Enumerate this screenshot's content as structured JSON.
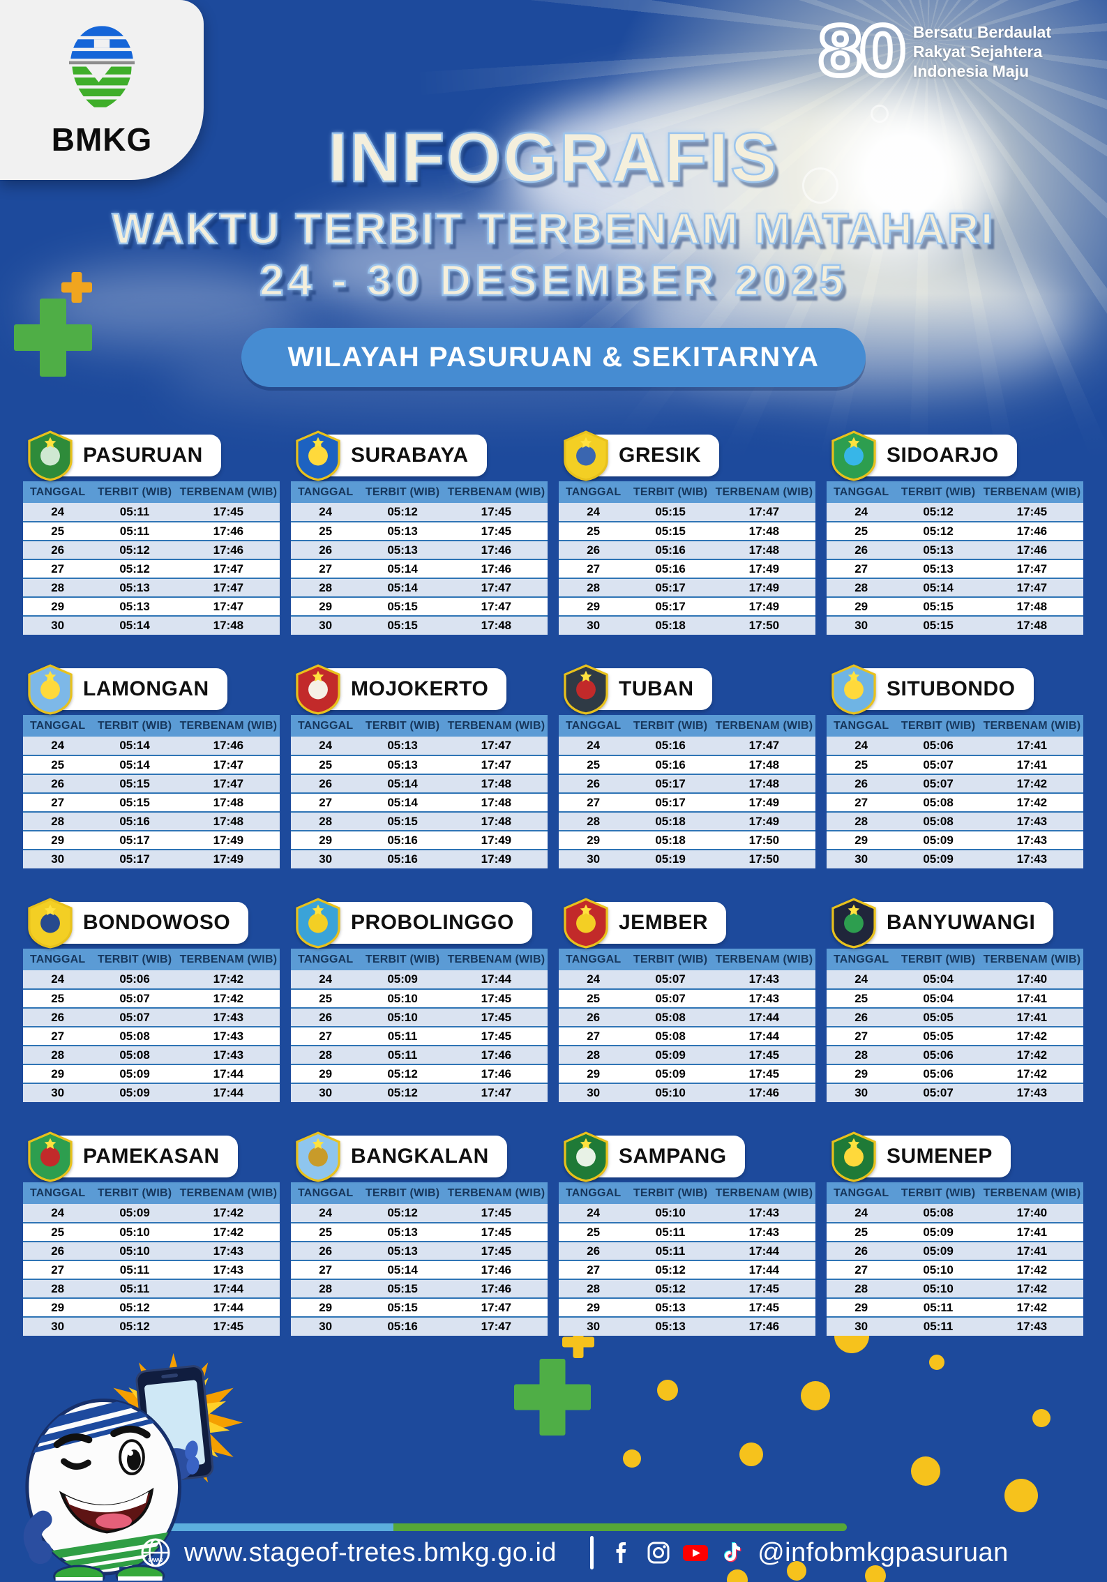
{
  "header": {
    "agency": "BMKG",
    "badge_80": {
      "number": "80",
      "lines": [
        "Bersatu Berdaulat",
        "Rakyat Sejahtera",
        "Indonesia Maju"
      ]
    },
    "title_line1": "INFOGRAFIS",
    "title_line2": "WAKTU TERBIT TERBENAM MATAHARI",
    "title_line3": "24 - 30 DESEMBER 2025",
    "region_pill": "WILAYAH PASURUAN & SEKITARNYA"
  },
  "table_columns": [
    "TANGGAL",
    "TERBIT (WIB)",
    "TERBENAM (WIB)"
  ],
  "cities": [
    {
      "name": "PASURUAN",
      "crest": [
        "#2e8b3a",
        "#cfe8d2"
      ],
      "rows": [
        [
          "24",
          "05:11",
          "17:45"
        ],
        [
          "25",
          "05:11",
          "17:46"
        ],
        [
          "26",
          "05:12",
          "17:46"
        ],
        [
          "27",
          "05:12",
          "17:47"
        ],
        [
          "28",
          "05:13",
          "17:47"
        ],
        [
          "29",
          "05:13",
          "17:47"
        ],
        [
          "30",
          "05:14",
          "17:48"
        ]
      ]
    },
    {
      "name": "SURABAYA",
      "crest": [
        "#1d62c1",
        "#ffd93b"
      ],
      "rows": [
        [
          "24",
          "05:12",
          "17:45"
        ],
        [
          "25",
          "05:13",
          "17:45"
        ],
        [
          "26",
          "05:13",
          "17:46"
        ],
        [
          "27",
          "05:14",
          "17:46"
        ],
        [
          "28",
          "05:14",
          "17:47"
        ],
        [
          "29",
          "05:15",
          "17:47"
        ],
        [
          "30",
          "05:15",
          "17:48"
        ]
      ]
    },
    {
      "name": "GRESIK",
      "crest": [
        "#f3cf24",
        "#3a66b0"
      ],
      "rows": [
        [
          "24",
          "05:15",
          "17:47"
        ],
        [
          "25",
          "05:15",
          "17:48"
        ],
        [
          "26",
          "05:16",
          "17:48"
        ],
        [
          "27",
          "05:16",
          "17:49"
        ],
        [
          "28",
          "05:17",
          "17:49"
        ],
        [
          "29",
          "05:17",
          "17:49"
        ],
        [
          "30",
          "05:18",
          "17:50"
        ]
      ]
    },
    {
      "name": "SIDOARJO",
      "crest": [
        "#2d9e4f",
        "#37b6e8"
      ],
      "rows": [
        [
          "24",
          "05:12",
          "17:45"
        ],
        [
          "25",
          "05:12",
          "17:46"
        ],
        [
          "26",
          "05:13",
          "17:46"
        ],
        [
          "27",
          "05:13",
          "17:47"
        ],
        [
          "28",
          "05:14",
          "17:47"
        ],
        [
          "29",
          "05:15",
          "17:48"
        ],
        [
          "30",
          "05:15",
          "17:48"
        ]
      ]
    },
    {
      "name": "LAMONGAN",
      "crest": [
        "#7db8e8",
        "#ffd93b"
      ],
      "rows": [
        [
          "24",
          "05:14",
          "17:46"
        ],
        [
          "25",
          "05:14",
          "17:47"
        ],
        [
          "26",
          "05:15",
          "17:47"
        ],
        [
          "27",
          "05:15",
          "17:48"
        ],
        [
          "28",
          "05:16",
          "17:48"
        ],
        [
          "29",
          "05:17",
          "17:49"
        ],
        [
          "30",
          "05:17",
          "17:49"
        ]
      ]
    },
    {
      "name": "MOJOKERTO",
      "crest": [
        "#c22a2a",
        "#f5f0e6"
      ],
      "rows": [
        [
          "24",
          "05:13",
          "17:47"
        ],
        [
          "25",
          "05:13",
          "17:47"
        ],
        [
          "26",
          "05:14",
          "17:48"
        ],
        [
          "27",
          "05:14",
          "17:48"
        ],
        [
          "28",
          "05:15",
          "17:48"
        ],
        [
          "29",
          "05:16",
          "17:49"
        ],
        [
          "30",
          "05:16",
          "17:49"
        ]
      ]
    },
    {
      "name": "TUBAN",
      "crest": [
        "#2f3a45",
        "#c22a2a"
      ],
      "rows": [
        [
          "24",
          "05:16",
          "17:47"
        ],
        [
          "25",
          "05:16",
          "17:48"
        ],
        [
          "26",
          "05:17",
          "17:48"
        ],
        [
          "27",
          "05:17",
          "17:49"
        ],
        [
          "28",
          "05:18",
          "17:49"
        ],
        [
          "29",
          "05:18",
          "17:50"
        ],
        [
          "30",
          "05:19",
          "17:50"
        ]
      ]
    },
    {
      "name": "SITUBONDO",
      "crest": [
        "#6fb4e4",
        "#ffd93b"
      ],
      "rows": [
        [
          "24",
          "05:06",
          "17:41"
        ],
        [
          "25",
          "05:07",
          "17:41"
        ],
        [
          "26",
          "05:07",
          "17:42"
        ],
        [
          "27",
          "05:08",
          "17:42"
        ],
        [
          "28",
          "05:08",
          "17:43"
        ],
        [
          "29",
          "05:09",
          "17:43"
        ],
        [
          "30",
          "05:09",
          "17:43"
        ]
      ]
    },
    {
      "name": "BONDOWOSO",
      "crest": [
        "#f3cf24",
        "#274a8e"
      ],
      "rows": [
        [
          "24",
          "05:06",
          "17:42"
        ],
        [
          "25",
          "05:07",
          "17:42"
        ],
        [
          "26",
          "05:07",
          "17:43"
        ],
        [
          "27",
          "05:08",
          "17:43"
        ],
        [
          "28",
          "05:08",
          "17:43"
        ],
        [
          "29",
          "05:09",
          "17:44"
        ],
        [
          "30",
          "05:09",
          "17:44"
        ]
      ]
    },
    {
      "name": "PROBOLINGGO",
      "crest": [
        "#3aa3d8",
        "#f3cf24"
      ],
      "rows": [
        [
          "24",
          "05:09",
          "17:44"
        ],
        [
          "25",
          "05:10",
          "17:45"
        ],
        [
          "26",
          "05:10",
          "17:45"
        ],
        [
          "27",
          "05:11",
          "17:45"
        ],
        [
          "28",
          "05:11",
          "17:46"
        ],
        [
          "29",
          "05:12",
          "17:46"
        ],
        [
          "30",
          "05:12",
          "17:47"
        ]
      ]
    },
    {
      "name": "JEMBER",
      "crest": [
        "#c22a2a",
        "#f3cf24"
      ],
      "rows": [
        [
          "24",
          "05:07",
          "17:43"
        ],
        [
          "25",
          "05:07",
          "17:43"
        ],
        [
          "26",
          "05:08",
          "17:44"
        ],
        [
          "27",
          "05:08",
          "17:44"
        ],
        [
          "28",
          "05:09",
          "17:45"
        ],
        [
          "29",
          "05:09",
          "17:45"
        ],
        [
          "30",
          "05:10",
          "17:46"
        ]
      ]
    },
    {
      "name": "BANYUWANGI",
      "crest": [
        "#20263b",
        "#2d9e4f"
      ],
      "rows": [
        [
          "24",
          "05:04",
          "17:40"
        ],
        [
          "25",
          "05:04",
          "17:41"
        ],
        [
          "26",
          "05:05",
          "17:41"
        ],
        [
          "27",
          "05:05",
          "17:42"
        ],
        [
          "28",
          "05:06",
          "17:42"
        ],
        [
          "29",
          "05:06",
          "17:42"
        ],
        [
          "30",
          "05:07",
          "17:43"
        ]
      ]
    },
    {
      "name": "PAMEKASAN",
      "crest": [
        "#2d9e4f",
        "#c22a2a"
      ],
      "rows": [
        [
          "24",
          "05:09",
          "17:42"
        ],
        [
          "25",
          "05:10",
          "17:42"
        ],
        [
          "26",
          "05:10",
          "17:43"
        ],
        [
          "27",
          "05:11",
          "17:43"
        ],
        [
          "28",
          "05:11",
          "17:44"
        ],
        [
          "29",
          "05:12",
          "17:44"
        ],
        [
          "30",
          "05:12",
          "17:45"
        ]
      ]
    },
    {
      "name": "BANGKALAN",
      "crest": [
        "#8ec5ee",
        "#c89b2a"
      ],
      "rows": [
        [
          "24",
          "05:12",
          "17:45"
        ],
        [
          "25",
          "05:13",
          "17:45"
        ],
        [
          "26",
          "05:13",
          "17:45"
        ],
        [
          "27",
          "05:14",
          "17:46"
        ],
        [
          "28",
          "05:15",
          "17:46"
        ],
        [
          "29",
          "05:15",
          "17:47"
        ],
        [
          "30",
          "05:16",
          "17:47"
        ]
      ]
    },
    {
      "name": "SAMPANG",
      "crest": [
        "#1f7a37",
        "#e8f2e6"
      ],
      "rows": [
        [
          "24",
          "05:10",
          "17:43"
        ],
        [
          "25",
          "05:11",
          "17:43"
        ],
        [
          "26",
          "05:11",
          "17:44"
        ],
        [
          "27",
          "05:12",
          "17:44"
        ],
        [
          "28",
          "05:12",
          "17:45"
        ],
        [
          "29",
          "05:13",
          "17:45"
        ],
        [
          "30",
          "05:13",
          "17:46"
        ]
      ]
    },
    {
      "name": "SUMENEP",
      "crest": [
        "#1f7a37",
        "#ffd93b"
      ],
      "rows": [
        [
          "24",
          "05:08",
          "17:40"
        ],
        [
          "25",
          "05:09",
          "17:41"
        ],
        [
          "26",
          "05:09",
          "17:41"
        ],
        [
          "27",
          "05:10",
          "17:42"
        ],
        [
          "28",
          "05:10",
          "17:42"
        ],
        [
          "29",
          "05:11",
          "17:42"
        ],
        [
          "30",
          "05:11",
          "17:43"
        ]
      ]
    }
  ],
  "footer": {
    "website": "www.stageof-tretes.bmkg.go.id",
    "separator": "|",
    "social_icons": [
      "facebook",
      "instagram",
      "youtube",
      "tiktok"
    ],
    "handle": "@infobmkgpasuruan"
  },
  "colors": {
    "background": "#1d4a9c",
    "table_header": "#5b9bd5",
    "table_header_text": "#16365c",
    "table_row_alt": "#dae3f1",
    "table_row": "#ffffff",
    "row_divider": "#2e74b5",
    "pill": "#468cd2",
    "title_fill": "#f4efdc",
    "title_outline": "#9cc4ec",
    "accent_green": "#4fae46",
    "accent_yellow": "#f6c21c"
  }
}
